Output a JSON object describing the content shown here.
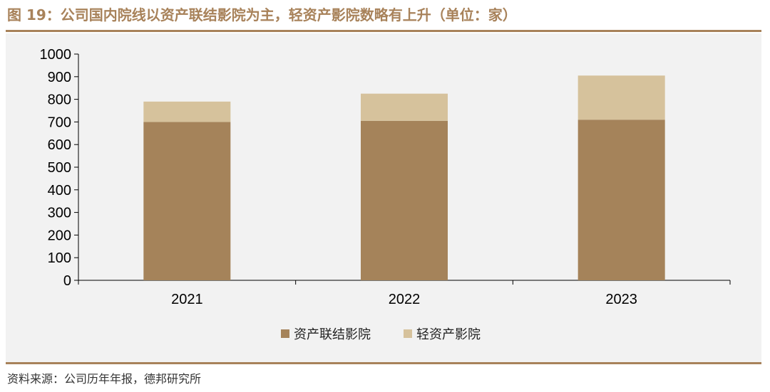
{
  "header": {
    "title": "图 19：公司国内院线以资产联结影院为主，轻资产影院数略有上升（单位：家）"
  },
  "footer": {
    "source": "资料来源：公司历年年报，德邦研究所"
  },
  "colors": {
    "accent": "#a8825a",
    "series_primary": "#a5835a",
    "series_secondary": "#d6c29c",
    "plot_background": "#f2f2f2"
  },
  "chart_data": {
    "type": "bar",
    "stacked": true,
    "title": "公司国内院线以资产联结影院为主，轻资产影院数略有上升",
    "ylabel": "",
    "xlabel": "",
    "unit": "家",
    "categories": [
      "2021",
      "2022",
      "2023"
    ],
    "series": [
      {
        "name": "资产联结影院",
        "values": [
          700,
          705,
          710
        ]
      },
      {
        "name": "轻资产影院",
        "values": [
          90,
          120,
          195
        ]
      }
    ],
    "ylim": [
      0,
      1000
    ],
    "yticks": [
      0,
      100,
      200,
      300,
      400,
      500,
      600,
      700,
      800,
      900,
      1000
    ],
    "grid": false,
    "legend": "bottom-center"
  }
}
